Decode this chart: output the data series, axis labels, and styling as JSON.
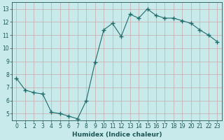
{
  "x": [
    0,
    1,
    2,
    3,
    4,
    5,
    6,
    7,
    8,
    9,
    10,
    11,
    12,
    13,
    14,
    15,
    16,
    17,
    18,
    19,
    20,
    21,
    22,
    23
  ],
  "y": [
    7.7,
    6.8,
    6.6,
    6.5,
    5.1,
    5.0,
    4.8,
    4.6,
    6.0,
    8.9,
    11.4,
    11.9,
    10.9,
    12.6,
    12.3,
    13.0,
    12.5,
    12.3,
    12.3,
    12.1,
    11.9,
    11.4,
    11.0,
    10.5
  ],
  "line_color": "#1e6b6b",
  "marker": "+",
  "marker_size": 4,
  "bg_color": "#c8eaea",
  "grid_color": "#c8a8a8",
  "xlabel": "Humidex (Indice chaleur)",
  "xlabel_color": "#1e5555",
  "tick_color": "#1e5555",
  "ylim": [
    4.5,
    13.5
  ],
  "xlim": [
    -0.5,
    23.5
  ],
  "yticks": [
    5,
    6,
    7,
    8,
    9,
    10,
    11,
    12,
    13
  ],
  "xticks": [
    0,
    1,
    2,
    3,
    4,
    5,
    6,
    7,
    8,
    9,
    10,
    11,
    12,
    13,
    14,
    15,
    16,
    17,
    18,
    19,
    20,
    21,
    22,
    23
  ]
}
